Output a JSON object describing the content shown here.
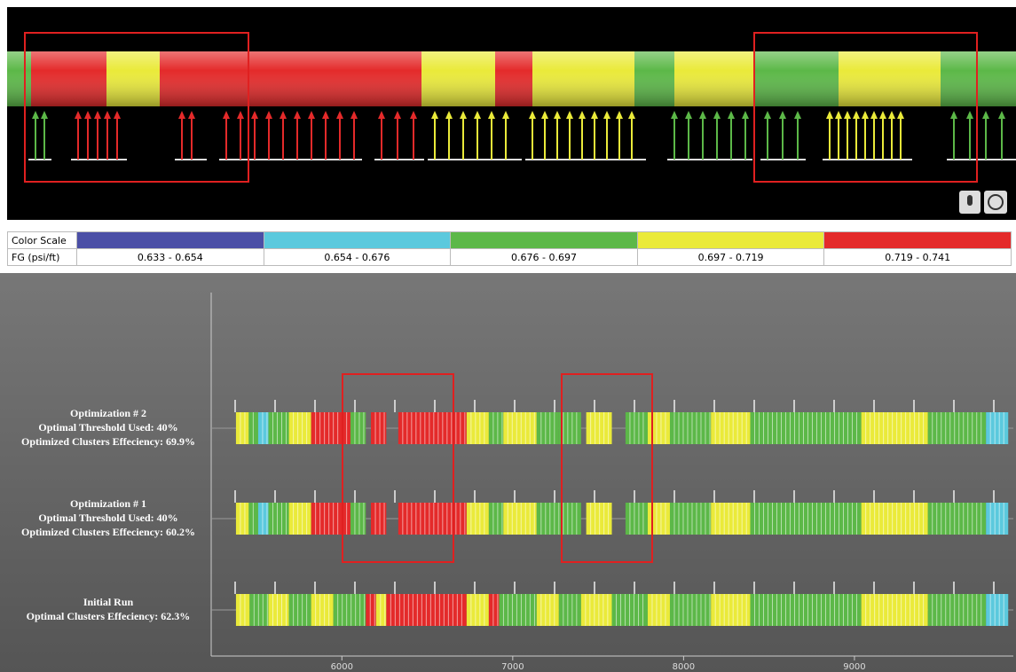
{
  "color_scale": {
    "label": "Color Scale",
    "unit_label": "FG (psi/ft)",
    "bins": [
      {
        "color": "#4b4fa6",
        "range": "0.633 - 0.654"
      },
      {
        "color": "#5bc9dd",
        "range": "0.654 - 0.676"
      },
      {
        "color": "#5cb848",
        "range": "0.676 - 0.697"
      },
      {
        "color": "#eaea3a",
        "range": "0.697 - 0.719"
      },
      {
        "color": "#e42a2a",
        "range": "0.719 - 0.741"
      }
    ]
  },
  "chart_data": {
    "type": "segments",
    "xlim": [
      5235,
      9930
    ],
    "xticks": [
      6000,
      7000,
      8000,
      9000
    ],
    "rows": [
      {
        "label": [
          "Optimization # 2",
          "Optimal Threshold Used: 40%",
          "Optimized Clusters Effeciency: 69.9%"
        ],
        "segments": [
          {
            "x0": 5380,
            "x1": 5455,
            "color": "#eaea3a"
          },
          {
            "x0": 5455,
            "x1": 5510,
            "color": "#5cb848"
          },
          {
            "x0": 5510,
            "x1": 5570,
            "color": "#5bc9dd"
          },
          {
            "x0": 5570,
            "x1": 5690,
            "color": "#5cb848"
          },
          {
            "x0": 5690,
            "x1": 5820,
            "color": "#eaea3a"
          },
          {
            "x0": 5820,
            "x1": 6050,
            "color": "#e42a2a"
          },
          {
            "x0": 6050,
            "x1": 6140,
            "color": "#5cb848"
          },
          {
            "x0": 6170,
            "x1": 6260,
            "color": "#e42a2a"
          },
          {
            "x0": 6330,
            "x1": 6730,
            "color": "#e42a2a"
          },
          {
            "x0": 6730,
            "x1": 6860,
            "color": "#eaea3a"
          },
          {
            "x0": 6860,
            "x1": 6945,
            "color": "#5cb848"
          },
          {
            "x0": 6945,
            "x1": 7140,
            "color": "#eaea3a"
          },
          {
            "x0": 7140,
            "x1": 7270,
            "color": "#5cb848"
          },
          {
            "x0": 7270,
            "x1": 7400,
            "color": "#5cb848"
          },
          {
            "x0": 7430,
            "x1": 7580,
            "color": "#eaea3a"
          },
          {
            "x0": 7660,
            "x1": 7790,
            "color": "#5cb848"
          },
          {
            "x0": 7790,
            "x1": 7920,
            "color": "#eaea3a"
          },
          {
            "x0": 7920,
            "x1": 8160,
            "color": "#5cb848"
          },
          {
            "x0": 8160,
            "x1": 8390,
            "color": "#eaea3a"
          },
          {
            "x0": 8390,
            "x1": 9040,
            "color": "#5cb848"
          },
          {
            "x0": 9040,
            "x1": 9430,
            "color": "#eaea3a"
          },
          {
            "x0": 9430,
            "x1": 9770,
            "color": "#5cb848"
          },
          {
            "x0": 9770,
            "x1": 9900,
            "color": "#5bc9dd"
          }
        ]
      },
      {
        "label": [
          "Optimization # 1",
          "Optimal Threshold Used: 40%",
          "Optimized Clusters Effeciency: 60.2%"
        ],
        "segments": [
          {
            "x0": 5380,
            "x1": 5455,
            "color": "#eaea3a"
          },
          {
            "x0": 5455,
            "x1": 5510,
            "color": "#5cb848"
          },
          {
            "x0": 5510,
            "x1": 5570,
            "color": "#5bc9dd"
          },
          {
            "x0": 5570,
            "x1": 5690,
            "color": "#5cb848"
          },
          {
            "x0": 5690,
            "x1": 5820,
            "color": "#eaea3a"
          },
          {
            "x0": 5820,
            "x1": 6050,
            "color": "#e42a2a"
          },
          {
            "x0": 6050,
            "x1": 6140,
            "color": "#5cb848"
          },
          {
            "x0": 6170,
            "x1": 6260,
            "color": "#e42a2a"
          },
          {
            "x0": 6330,
            "x1": 6730,
            "color": "#e42a2a"
          },
          {
            "x0": 6730,
            "x1": 6860,
            "color": "#eaea3a"
          },
          {
            "x0": 6860,
            "x1": 6945,
            "color": "#5cb848"
          },
          {
            "x0": 6945,
            "x1": 7140,
            "color": "#eaea3a"
          },
          {
            "x0": 7140,
            "x1": 7400,
            "color": "#5cb848"
          },
          {
            "x0": 7430,
            "x1": 7580,
            "color": "#eaea3a"
          },
          {
            "x0": 7660,
            "x1": 7790,
            "color": "#5cb848"
          },
          {
            "x0": 7790,
            "x1": 7920,
            "color": "#eaea3a"
          },
          {
            "x0": 7920,
            "x1": 8160,
            "color": "#5cb848"
          },
          {
            "x0": 8160,
            "x1": 8390,
            "color": "#eaea3a"
          },
          {
            "x0": 8390,
            "x1": 9040,
            "color": "#5cb848"
          },
          {
            "x0": 9040,
            "x1": 9430,
            "color": "#eaea3a"
          },
          {
            "x0": 9430,
            "x1": 9770,
            "color": "#5cb848"
          },
          {
            "x0": 9770,
            "x1": 9900,
            "color": "#5bc9dd"
          }
        ]
      },
      {
        "label": [
          "Initial Run",
          "Optimal Clusters Effeciency: 62.3%"
        ],
        "segments": [
          {
            "x0": 5380,
            "x1": 5460,
            "color": "#eaea3a"
          },
          {
            "x0": 5460,
            "x1": 5570,
            "color": "#5cb848"
          },
          {
            "x0": 5570,
            "x1": 5690,
            "color": "#eaea3a"
          },
          {
            "x0": 5690,
            "x1": 5820,
            "color": "#5cb848"
          },
          {
            "x0": 5820,
            "x1": 5950,
            "color": "#eaea3a"
          },
          {
            "x0": 5950,
            "x1": 6140,
            "color": "#5cb848"
          },
          {
            "x0": 6140,
            "x1": 6200,
            "color": "#e42a2a"
          },
          {
            "x0": 6200,
            "x1": 6260,
            "color": "#eaea3a"
          },
          {
            "x0": 6260,
            "x1": 6730,
            "color": "#e42a2a"
          },
          {
            "x0": 6730,
            "x1": 6860,
            "color": "#eaea3a"
          },
          {
            "x0": 6860,
            "x1": 6920,
            "color": "#e42a2a"
          },
          {
            "x0": 6920,
            "x1": 7140,
            "color": "#5cb848"
          },
          {
            "x0": 7140,
            "x1": 7270,
            "color": "#eaea3a"
          },
          {
            "x0": 7270,
            "x1": 7400,
            "color": "#5cb848"
          },
          {
            "x0": 7400,
            "x1": 7580,
            "color": "#eaea3a"
          },
          {
            "x0": 7580,
            "x1": 7790,
            "color": "#5cb848"
          },
          {
            "x0": 7790,
            "x1": 7920,
            "color": "#eaea3a"
          },
          {
            "x0": 7920,
            "x1": 8160,
            "color": "#5cb848"
          },
          {
            "x0": 8160,
            "x1": 8390,
            "color": "#eaea3a"
          },
          {
            "x0": 8390,
            "x1": 9040,
            "color": "#5cb848"
          },
          {
            "x0": 9040,
            "x1": 9430,
            "color": "#eaea3a"
          },
          {
            "x0": 9430,
            "x1": 9770,
            "color": "#5cb848"
          },
          {
            "x0": 9770,
            "x1": 9900,
            "color": "#5bc9dd"
          }
        ]
      }
    ]
  }
}
